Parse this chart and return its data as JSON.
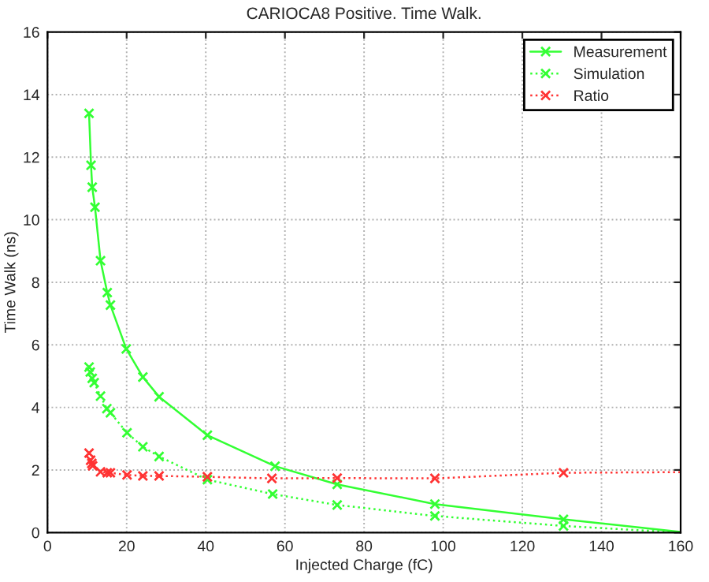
{
  "chart_data": {
    "type": "line",
    "title": "CARIOCA8 Positive. Time Walk.",
    "xlabel": "Injected Charge (fC)",
    "ylabel": "Time Walk (ns)",
    "xlim": [
      0,
      160
    ],
    "ylim": [
      0,
      16
    ],
    "xticks": [
      0,
      20,
      40,
      60,
      80,
      100,
      120,
      140,
      160
    ],
    "yticks": [
      0,
      2,
      4,
      6,
      8,
      10,
      12,
      14,
      16
    ],
    "grid": true,
    "legend": "top right",
    "series": [
      {
        "name": "Measurement",
        "color": "#33ff33",
        "line_style": "solid",
        "marker": "cross",
        "x": [
          10.5,
          11.0,
          11.3,
          12.0,
          13.4,
          15.1,
          15.9,
          19.9,
          24.1,
          28.2,
          40.4,
          57.5,
          73.2,
          97.9,
          130.4
        ],
        "values": [
          13.4,
          11.74,
          11.04,
          10.4,
          8.69,
          7.67,
          7.27,
          5.87,
          4.97,
          4.34,
          3.11,
          2.12,
          1.54,
          0.91,
          0.42
        ]
      },
      {
        "name": "Simulation",
        "color": "#33ff33",
        "line_style": "dotted",
        "marker": "cross",
        "x": [
          10.5,
          10.8,
          11.3,
          11.8,
          13.4,
          15.0,
          15.9,
          20.1,
          24.1,
          28.2,
          40.4,
          56.9,
          73.2,
          97.9,
          130.4
        ],
        "values": [
          5.29,
          5.13,
          4.93,
          4.79,
          4.36,
          3.96,
          3.83,
          3.19,
          2.74,
          2.43,
          1.69,
          1.23,
          0.88,
          0.53,
          0.21
        ]
      },
      {
        "name": "Ratio",
        "color": "#ff3333",
        "line_style": "dotted",
        "marker": "cross",
        "x": [
          10.5,
          10.9,
          11.2,
          11.4,
          13.4,
          15.1,
          15.9,
          20.1,
          24.1,
          28.2,
          40.4,
          56.7,
          73.2,
          97.9,
          130.4
        ],
        "values": [
          2.54,
          2.31,
          2.21,
          2.13,
          1.94,
          1.91,
          1.91,
          1.84,
          1.81,
          1.81,
          1.78,
          1.73,
          1.74,
          1.73,
          1.91
        ]
      },
      {
        "color": "#33ff33",
        "line_style": "solid",
        "marker": "none",
        "x": [
          130.4,
          160
        ],
        "values": [
          0.42,
          0.02
        ]
      },
      {
        "color": "#33ff33",
        "line_style": "dotted",
        "marker": "none",
        "x": [
          130.4,
          160
        ],
        "values": [
          0.21,
          0.0
        ]
      },
      {
        "color": "#ff3333",
        "line_style": "dotted",
        "marker": "none",
        "x": [
          130.4,
          160
        ],
        "values": [
          1.91,
          1.93
        ]
      }
    ]
  }
}
